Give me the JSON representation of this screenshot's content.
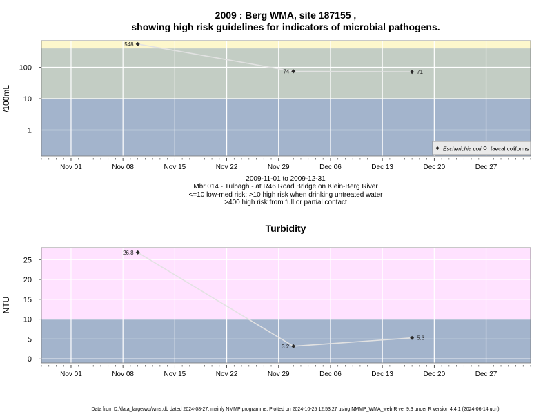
{
  "chart_data": [
    {
      "type": "scatter",
      "title_line1": "2009 : Berg WMA, site 187155 ,",
      "title_line2": "showing high risk guidelines for indicators of microbial pathogens.",
      "ylabel": "/100mL",
      "y_scale": "log",
      "ylim": [
        0.15,
        700
      ],
      "y_ticks": [
        {
          "value": 1,
          "label": "1"
        },
        {
          "value": 10,
          "label": "10"
        },
        {
          "value": 100,
          "label": "100"
        }
      ],
      "xlim": [
        "2009-10-28",
        "2010-01-02"
      ],
      "x_ticks": [
        "Nov 01",
        "Nov 08",
        "Nov 15",
        "Nov 22",
        "Nov 29",
        "Dec 06",
        "Dec 13",
        "Dec 20",
        "Dec 27"
      ],
      "x_tick_dates": [
        "2009-11-01",
        "2009-11-08",
        "2009-11-15",
        "2009-11-22",
        "2009-11-29",
        "2009-12-06",
        "2009-12-13",
        "2009-12-20",
        "2009-12-27"
      ],
      "bands": [
        {
          "from": 0.15,
          "to": 10,
          "color": "#a3b4cc"
        },
        {
          "from": 10,
          "to": 400,
          "color": "#c3cdc4"
        },
        {
          "from": 400,
          "to": 700,
          "color": "#fdf7cc"
        }
      ],
      "series": [
        {
          "name": "Escherichia coli",
          "marker": "diamond-filled",
          "x": [
            "2009-11-10",
            "2009-12-01",
            "2009-12-17"
          ],
          "values": [
            548,
            74,
            71
          ],
          "labels": [
            "548",
            "74",
            "71"
          ]
        }
      ],
      "legend": {
        "position": "bottom-right",
        "entries": [
          "Escherichia coli",
          "faecal coliforms"
        ]
      },
      "caption": [
        "2009-11-01 to 2009-12-31",
        "Mbr 014 - Tulbagh - at R46 Road Bridge on Klein-Berg River",
        "<=10 low-med risk; >10 high risk when drinking untreated water",
        ">400 high risk from full or partial contact"
      ]
    },
    {
      "type": "scatter",
      "title": "Turbidity",
      "ylabel": "NTU",
      "y_scale": "linear",
      "ylim": [
        -1,
        28
      ],
      "y_ticks": [
        {
          "value": 0,
          "label": "0"
        },
        {
          "value": 5,
          "label": "5"
        },
        {
          "value": 10,
          "label": "10"
        },
        {
          "value": 15,
          "label": "15"
        },
        {
          "value": 20,
          "label": "20"
        },
        {
          "value": 25,
          "label": "25"
        }
      ],
      "xlim": [
        "2009-10-28",
        "2010-01-02"
      ],
      "x_ticks": [
        "Nov 01",
        "Nov 08",
        "Nov 15",
        "Nov 22",
        "Nov 29",
        "Dec 06",
        "Dec 13",
        "Dec 20",
        "Dec 27"
      ],
      "x_tick_dates": [
        "2009-11-01",
        "2009-11-08",
        "2009-11-15",
        "2009-11-22",
        "2009-11-29",
        "2009-12-06",
        "2009-12-13",
        "2009-12-20",
        "2009-12-27"
      ],
      "bands": [
        {
          "from": -1,
          "to": 10,
          "color": "#a3b4cc"
        },
        {
          "from": 10,
          "to": 28,
          "color": "#ffe2ff"
        }
      ],
      "series": [
        {
          "name": "",
          "marker": "diamond-filled",
          "x": [
            "2009-11-10",
            "2009-12-01",
            "2009-12-17"
          ],
          "values": [
            26.8,
            3.2,
            5.3
          ],
          "labels": [
            "26.8",
            "3.2",
            "5.3"
          ]
        }
      ]
    }
  ],
  "footer": "Data from D:/data_large/wq/wms.db dated 2024-08-27, mainly NMMP programme. Plotted on 2024-10-25 12:53:27 using NMMP_WMA_web.R ver 9.3 under R version 4.4.1 (2024-06-14 ucrt)"
}
